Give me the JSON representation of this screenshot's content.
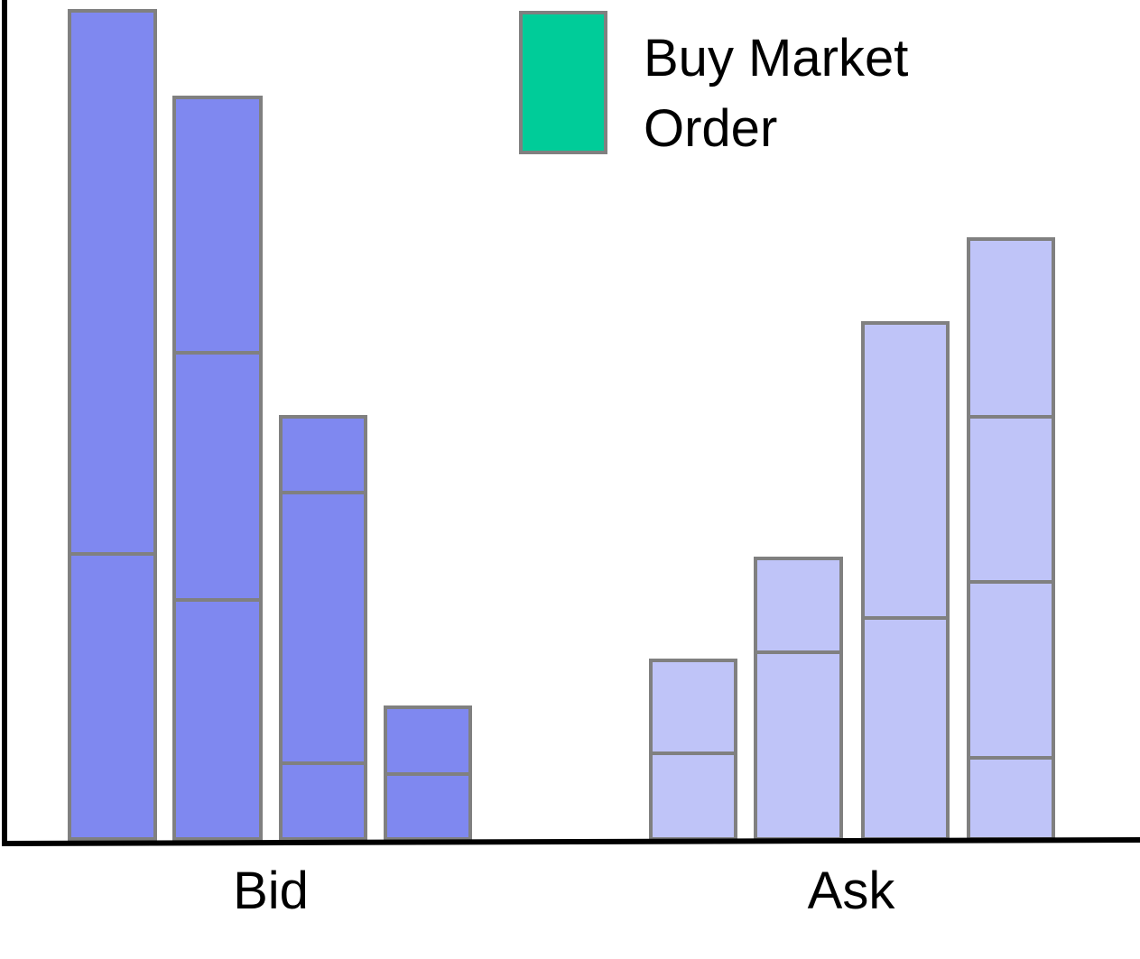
{
  "legend": {
    "label_lines": [
      "Buy Market",
      "Order"
    ]
  },
  "axis": {
    "labels": [
      "Bid",
      "Ask"
    ]
  }
}
